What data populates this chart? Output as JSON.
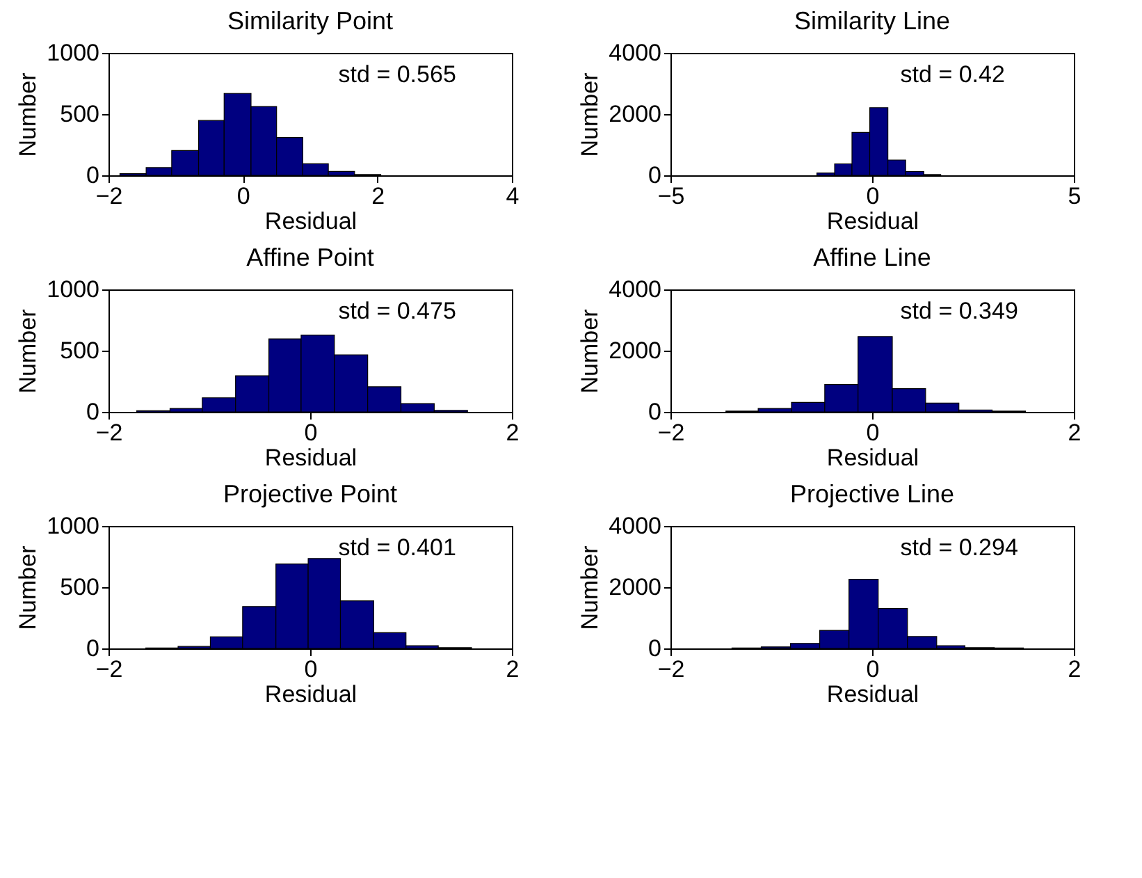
{
  "chart_data": [
    {
      "type": "histogram",
      "title": "Similarity Point",
      "xlabel": "Residual",
      "ylabel": "Number",
      "color": "#000080",
      "bins": [
        -1.83,
        -1.44,
        -1.06,
        -0.66,
        -0.28,
        0.12,
        0.5,
        0.89,
        1.27,
        1.66,
        2.05
      ],
      "values": [
        13,
        63,
        202,
        448,
        669,
        562,
        309,
        95,
        32,
        6
      ],
      "xlim": [
        -2,
        4
      ],
      "xticks": [
        -2,
        0,
        2,
        4
      ],
      "ylim": [
        0,
        1000
      ],
      "yticks": [
        0,
        500,
        1000
      ],
      "annotations": [
        "std = 0.565"
      ]
    },
    {
      "type": "histogram",
      "title": "Similarity Line",
      "xlabel": "Residual",
      "ylabel": "Number",
      "color": "#000080",
      "bins": [
        -1.37,
        -0.93,
        -0.5,
        -0.06,
        0.39,
        0.83,
        1.28,
        1.7
      ],
      "values": [
        75,
        375,
        1400,
        2210,
        500,
        125,
        25
      ],
      "xlim": [
        -5,
        5
      ],
      "xticks": [
        -5,
        0,
        5
      ],
      "ylim": [
        0,
        4000
      ],
      "yticks": [
        0,
        2000,
        4000
      ],
      "annotations": [
        "std = 0.42"
      ]
    },
    {
      "type": "histogram",
      "title": "Affine Point",
      "xlabel": "Residual",
      "ylabel": "Number",
      "color": "#000080",
      "bins": [
        -1.72,
        -1.39,
        -1.07,
        -0.74,
        -0.41,
        -0.09,
        0.24,
        0.57,
        0.9,
        1.23,
        1.56
      ],
      "values": [
        9,
        28,
        115,
        295,
        596,
        627,
        466,
        205,
        68,
        12
      ],
      "xlim": [
        -2,
        2
      ],
      "xticks": [
        -2,
        0,
        2
      ],
      "ylim": [
        0,
        1000
      ],
      "yticks": [
        0,
        500,
        1000
      ],
      "annotations": [
        "std = 0.475"
      ]
    },
    {
      "type": "histogram",
      "title": "Affine Line",
      "xlabel": "Residual",
      "ylabel": "Number",
      "color": "#000080",
      "bins": [
        -1.45,
        -1.13,
        -0.8,
        -0.47,
        -0.14,
        0.2,
        0.53,
        0.86,
        1.19,
        1.52
      ],
      "values": [
        25,
        112,
        311,
        894,
        2460,
        758,
        286,
        62,
        25
      ],
      "xlim": [
        -2,
        2
      ],
      "xticks": [
        -2,
        0,
        2
      ],
      "ylim": [
        0,
        4000
      ],
      "yticks": [
        0,
        2000,
        4000
      ],
      "annotations": [
        "std = 0.349"
      ]
    },
    {
      "type": "histogram",
      "title": "Projective Point",
      "xlabel": "Residual",
      "ylabel": "Number",
      "color": "#000080",
      "bins": [
        -1.63,
        -1.31,
        -0.99,
        -0.67,
        -0.34,
        -0.02,
        0.3,
        0.63,
        0.95,
        1.27,
        1.6
      ],
      "values": [
        3,
        16,
        94,
        342,
        690,
        734,
        389,
        129,
        22,
        6
      ],
      "xlim": [
        -2,
        2
      ],
      "xticks": [
        -2,
        0,
        2
      ],
      "ylim": [
        0,
        1000
      ],
      "yticks": [
        0,
        500,
        1000
      ],
      "annotations": [
        "std = 0.401"
      ]
    },
    {
      "type": "histogram",
      "title": "Projective Line",
      "xlabel": "Residual",
      "ylabel": "Number",
      "color": "#000080",
      "bins": [
        -1.39,
        -1.1,
        -0.81,
        -0.52,
        -0.23,
        0.06,
        0.35,
        0.64,
        0.92,
        1.21,
        1.5
      ],
      "values": [
        12,
        50,
        163,
        589,
        2257,
        1304,
        389,
        88,
        25,
        12
      ],
      "xlim": [
        -2,
        2
      ],
      "xticks": [
        -2,
        0,
        2
      ],
      "ylim": [
        0,
        4000
      ],
      "yticks": [
        0,
        2000,
        4000
      ],
      "annotations": [
        "std = 0.294"
      ]
    }
  ]
}
